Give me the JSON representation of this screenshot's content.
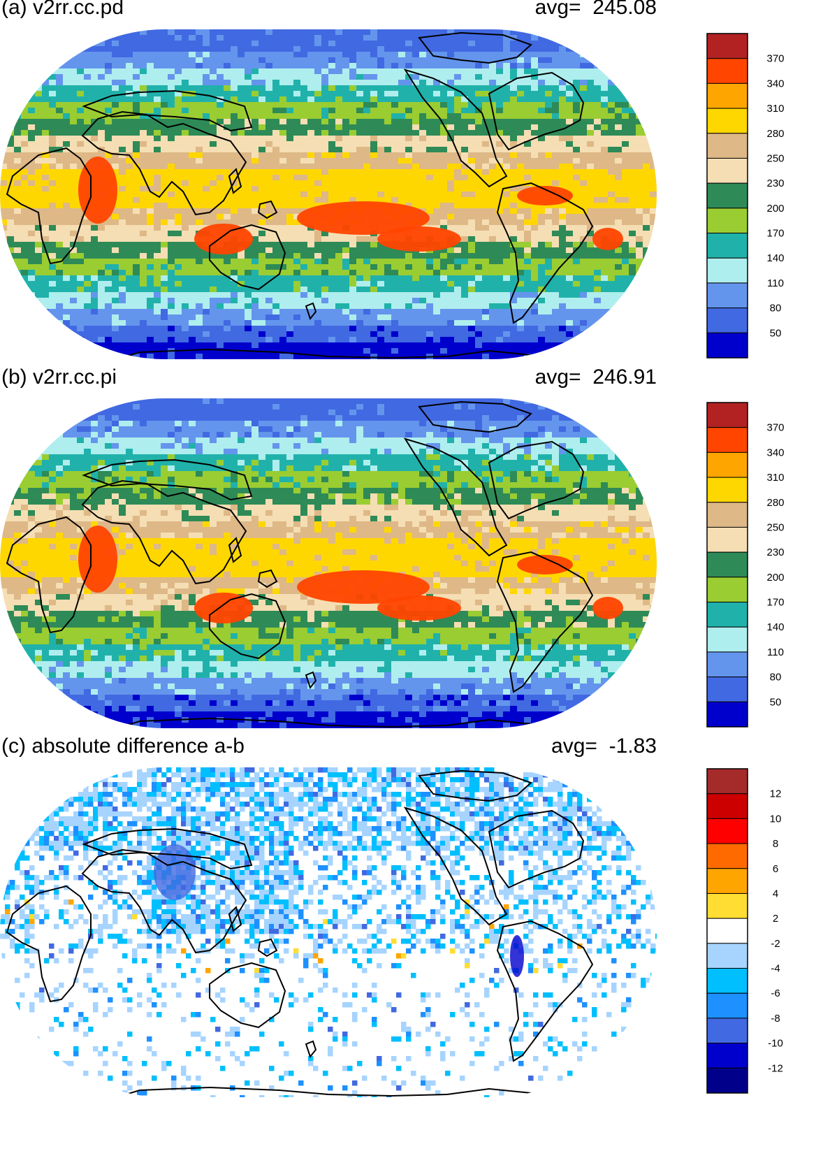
{
  "panels": [
    {
      "title": "(a) v2rr.cc.pd",
      "avg_label": "avg=",
      "avg_value": "245.08",
      "colorbar": {
        "labels": [
          "370",
          "340",
          "310",
          "280",
          "250",
          "230",
          "200",
          "170",
          "140",
          "110",
          "80",
          "50"
        ],
        "colors": [
          "#b22222",
          "#ff4500",
          "#ffa500",
          "#ffd700",
          "#deb887",
          "#f5deb3",
          "#2e8b57",
          "#9acd32",
          "#20b2aa",
          "#afeeee",
          "#6495ed",
          "#4169e1",
          "#0000cd"
        ]
      },
      "chart_data": {
        "type": "heatmap",
        "field": "map of v2rr.cc.pd",
        "zonal_band_levels_north_to_south": [
          80,
          110,
          140,
          170,
          200,
          230,
          250,
          280,
          310,
          310,
          280,
          250,
          230,
          200,
          170,
          140,
          110,
          80,
          50
        ],
        "tropical_maxima": [
          "340 over western Indian Ocean",
          "340 over Maritime Continent",
          "340 over central Pacific",
          "340 over Caribbean",
          "340 over tropical Atlantic"
        ]
      }
    },
    {
      "title": "(b) v2rr.cc.pi",
      "avg_label": "avg=",
      "avg_value": "246.91",
      "colorbar": {
        "labels": [
          "370",
          "340",
          "310",
          "280",
          "250",
          "230",
          "200",
          "170",
          "140",
          "110",
          "80",
          "50"
        ],
        "colors": [
          "#b22222",
          "#ff4500",
          "#ffa500",
          "#ffd700",
          "#deb887",
          "#f5deb3",
          "#2e8b57",
          "#9acd32",
          "#20b2aa",
          "#afeeee",
          "#6495ed",
          "#4169e1",
          "#0000cd"
        ]
      },
      "chart_data": {
        "type": "heatmap",
        "field": "map of v2rr.cc.pi",
        "zonal_band_levels_north_to_south": [
          80,
          110,
          140,
          170,
          200,
          230,
          250,
          280,
          310,
          310,
          280,
          250,
          230,
          200,
          170,
          140,
          110,
          80,
          50
        ],
        "tropical_maxima": [
          "340 over western Indian Ocean",
          "340 over Maritime Continent",
          "340 over central Pacific",
          "340 over Caribbean",
          "340 over tropical Atlantic"
        ]
      }
    },
    {
      "title": "(c) absolute difference a-b",
      "avg_label": "avg=",
      "avg_value": "-1.83",
      "colorbar": {
        "labels": [
          "12",
          "10",
          "8",
          "6",
          "4",
          "2",
          "-2",
          "-4",
          "-6",
          "-8",
          "-10",
          "-12"
        ],
        "colors": [
          "#a52a2a",
          "#cd0000",
          "#ff0000",
          "#ff6a00",
          "#ffa500",
          "#ffdd33",
          "#ffffff",
          "#a6d4ff",
          "#00bfff",
          "#1e90ff",
          "#4169e1",
          "#0000cd",
          "#00008b"
        ]
      },
      "chart_data": {
        "type": "heatmap",
        "field": "map of absolute difference a-b",
        "dominant_level": "-2 to 2 (white)",
        "negative_regions": [
          "-4 to -10 over East Asia and North Pacific",
          "-2 to -6 over North America and Atlantic",
          "-8 to -12 over western South America"
        ]
      }
    }
  ]
}
